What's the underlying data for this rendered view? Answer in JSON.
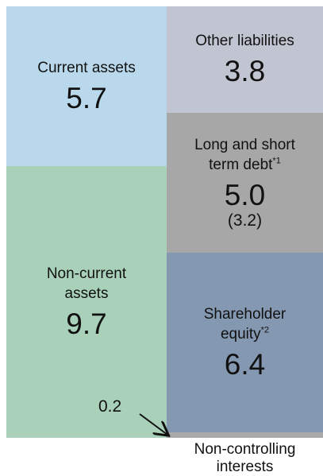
{
  "chart_data": {
    "type": "balance_sheet",
    "columns": [
      {
        "segments": [
          {
            "name": "Current assets",
            "value": 5.7,
            "color": "#b9d8ec"
          },
          {
            "name": "Non-current assets",
            "value": 9.7,
            "color": "#a9d1b9"
          }
        ]
      },
      {
        "segments": [
          {
            "name": "Other liabilities",
            "value": 3.8,
            "color": "#c1c5d1"
          },
          {
            "name": "Long and short term debt",
            "note": "*1",
            "value": 5,
            "value_label": "5.0",
            "detail_label": "(3.2)",
            "color": "#a7a7a7"
          },
          {
            "name": "Shareholder equity",
            "note": "*2",
            "value": 6.4,
            "color": "#8598b1"
          },
          {
            "name": "Non-controlling interests",
            "value": 0.2,
            "color": "#a9a9a9"
          }
        ]
      }
    ]
  }
}
